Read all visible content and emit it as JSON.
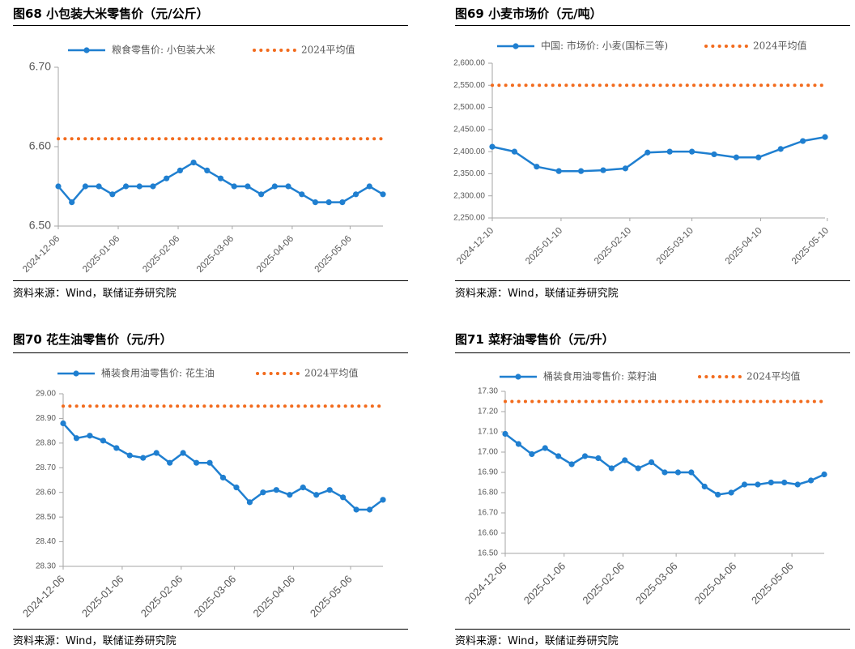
{
  "source": "资料来源：Wind，联储证券研究院",
  "colors": {
    "series": "#1f7fd0",
    "avg": "#f26b1d",
    "axis": "#a6a6a6",
    "tick": "#595959"
  },
  "panels": [
    {
      "title": "图68 小包装大米零售价（元/公斤）"
    },
    {
      "title": "图69 小麦市场价（元/吨）"
    },
    {
      "title": "图70 花生油零售价（元/升）"
    },
    {
      "title": "图71 菜籽油零售价（元/升）"
    }
  ],
  "chart_data": [
    {
      "type": "line",
      "title": "图68 小包装大米零售价（元/公斤）",
      "series": [
        {
          "name": "粮食零售价: 小包装大米",
          "values": [
            6.55,
            6.53,
            6.55,
            6.55,
            6.54,
            6.55,
            6.55,
            6.55,
            6.56,
            6.57,
            6.58,
            6.57,
            6.56,
            6.55,
            6.55,
            6.54,
            6.55,
            6.55,
            6.54,
            6.53,
            6.53,
            6.53,
            6.54,
            6.55,
            6.54
          ]
        },
        {
          "name": "2024平均值",
          "value": 6.61
        }
      ],
      "x_labels": [
        "2024-12-06",
        "2025-01-06",
        "2025-02-06",
        "2025-03-06",
        "2025-04-06",
        "2025-05-06"
      ],
      "x_label_points": [
        0,
        4.43,
        8.86,
        12.86,
        17.29,
        21.57
      ],
      "ylim": [
        6.5,
        6.7
      ],
      "yticks": [
        "6.50",
        "6.60",
        "6.70"
      ],
      "xlabel": "",
      "ylabel": "",
      "legend": "top"
    },
    {
      "type": "line",
      "title": "图69 小麦市场价（元/吨）",
      "series": [
        {
          "name": "中国: 市场价: 小麦(国标三等)",
          "values": [
            2411,
            2400,
            2366,
            2356,
            2356,
            2358,
            2362,
            2398,
            2400,
            2400,
            2394,
            2387,
            2387,
            2406,
            2424,
            2433
          ]
        },
        {
          "name": "2024平均值",
          "value": 2550
        }
      ],
      "x_labels": [
        "2024-12-10",
        "2025-01-10",
        "2025-02-10",
        "2025-03-10",
        "2025-04-10",
        "2025-05-10"
      ],
      "x_label_points": [
        0,
        3.1,
        6.2,
        9.0,
        12.1,
        15.1
      ],
      "ylim": [
        2250,
        2600
      ],
      "yticks": [
        "2,250.00",
        "2,300.00",
        "2,350.00",
        "2,400.00",
        "2,450.00",
        "2,500.00",
        "2,550.00",
        "2,600.00"
      ],
      "xlabel": "",
      "ylabel": "",
      "legend": "top"
    },
    {
      "type": "line",
      "title": "图70 花生油零售价（元/升）",
      "series": [
        {
          "name": "桶装食用油零售价: 花生油",
          "values": [
            28.88,
            28.82,
            28.83,
            28.81,
            28.78,
            28.75,
            28.74,
            28.76,
            28.72,
            28.76,
            28.72,
            28.72,
            28.66,
            28.62,
            28.56,
            28.6,
            28.61,
            28.59,
            28.62,
            28.59,
            28.61,
            28.58,
            28.53,
            28.53,
            28.57
          ]
        },
        {
          "name": "2024平均值",
          "value": 28.95
        }
      ],
      "x_labels": [
        "2024-12-06",
        "2025-01-06",
        "2025-02-06",
        "2025-03-06",
        "2025-04-06",
        "2025-05-06"
      ],
      "x_label_points": [
        0,
        4.43,
        8.86,
        12.86,
        17.29,
        21.57
      ],
      "ylim": [
        28.3,
        29.0
      ],
      "yticks": [
        "28.30",
        "28.40",
        "28.50",
        "28.60",
        "28.70",
        "28.80",
        "28.90",
        "29.00"
      ],
      "xlabel": "",
      "ylabel": "",
      "legend": "top"
    },
    {
      "type": "line",
      "title": "图71 菜籽油零售价（元/升）",
      "series": [
        {
          "name": "桶装食用油零售价: 菜籽油",
          "values": [
            17.09,
            17.04,
            16.99,
            17.02,
            16.98,
            16.94,
            16.98,
            16.97,
            16.92,
            16.96,
            16.92,
            16.95,
            16.9,
            16.9,
            16.9,
            16.83,
            16.79,
            16.8,
            16.84,
            16.84,
            16.85,
            16.85,
            16.84,
            16.86,
            16.89
          ]
        },
        {
          "name": "2024平均值",
          "value": 17.25
        }
      ],
      "x_labels": [
        "2024-12-06",
        "2025-01-06",
        "2025-02-06",
        "2025-03-06",
        "2025-04-06",
        "2025-05-06"
      ],
      "x_label_points": [
        0,
        4.43,
        8.86,
        12.86,
        17.29,
        21.57
      ],
      "ylim": [
        16.5,
        17.3
      ],
      "yticks": [
        "16.50",
        "16.60",
        "16.70",
        "16.80",
        "16.90",
        "17.00",
        "17.10",
        "17.20",
        "17.30"
      ],
      "xlabel": "",
      "ylabel": "",
      "legend": "top"
    }
  ]
}
